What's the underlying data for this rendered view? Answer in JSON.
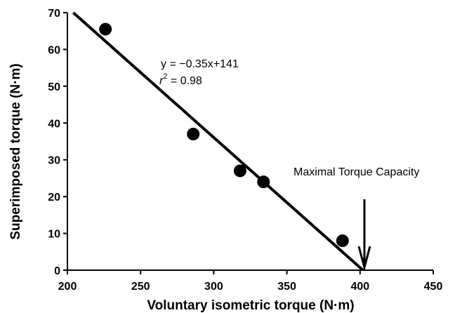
{
  "chart_data": {
    "type": "scatter",
    "xlabel": "Voluntary isometric torque (N·m)",
    "ylabel": "Superimposed torque (N·m)",
    "xlim": [
      200,
      450
    ],
    "ylim": [
      0,
      70
    ],
    "xticks": [
      200,
      250,
      300,
      350,
      400,
      450
    ],
    "yticks": [
      0,
      10,
      20,
      30,
      40,
      50,
      60,
      70
    ],
    "points": [
      {
        "x": 226,
        "y": 65.5
      },
      {
        "x": 286,
        "y": 37
      },
      {
        "x": 318,
        "y": 27
      },
      {
        "x": 334,
        "y": 24
      },
      {
        "x": 388,
        "y": 8
      }
    ],
    "fit_line": {
      "x": [
        204,
        402
      ],
      "y": [
        70,
        0
      ]
    },
    "equation": "y = −0.35x+141",
    "r2_prefix": "r",
    "r2_sup": "2",
    "r2_value": " = 0.98",
    "arrow_annotation": {
      "label": "Maximal Torque Capacity",
      "x": 402
    },
    "grid": false,
    "legend": "none"
  }
}
